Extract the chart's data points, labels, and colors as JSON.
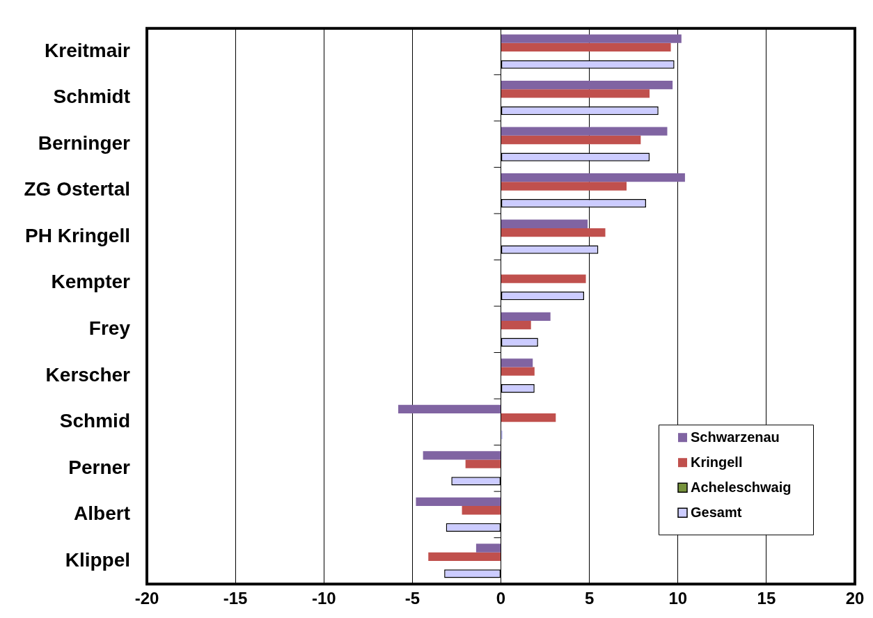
{
  "chart_data": {
    "type": "bar",
    "orientation": "horizontal",
    "categories": [
      "Kreitmair",
      "Schmidt",
      "Berninger",
      "ZG Ostertal",
      "PH Kringell",
      "Kempter",
      "Frey",
      "Kerscher",
      "Schmid",
      "Perner",
      "Albert",
      "Klippel"
    ],
    "series": [
      {
        "name": "Schwarzenau",
        "color": "#8064a2",
        "values": [
          10.2,
          9.7,
          9.4,
          10.4,
          4.9,
          null,
          2.8,
          1.8,
          -5.8,
          -4.4,
          -4.8,
          -1.4
        ]
      },
      {
        "name": "Kringell",
        "color": "#c0504d",
        "values": [
          9.6,
          8.4,
          7.9,
          7.1,
          5.9,
          4.8,
          1.7,
          1.9,
          3.1,
          -2.0,
          -2.2,
          -4.1
        ]
      },
      {
        "name": "Acheleschwaig",
        "color": "#77933c",
        "values": [
          null,
          null,
          null,
          null,
          null,
          null,
          null,
          null,
          null,
          null,
          null,
          null
        ]
      },
      {
        "name": "Gesamt",
        "color": "#ccccff",
        "values": [
          9.8,
          8.9,
          8.4,
          8.2,
          5.5,
          4.7,
          2.1,
          1.9,
          0.1,
          -2.8,
          -3.1,
          -3.2
        ]
      }
    ],
    "xlim": [
      -20,
      20
    ],
    "xticks": [
      -20,
      -15,
      -10,
      -5,
      0,
      5,
      10,
      15,
      20
    ],
    "grid": "x",
    "legend": "bottom right"
  }
}
